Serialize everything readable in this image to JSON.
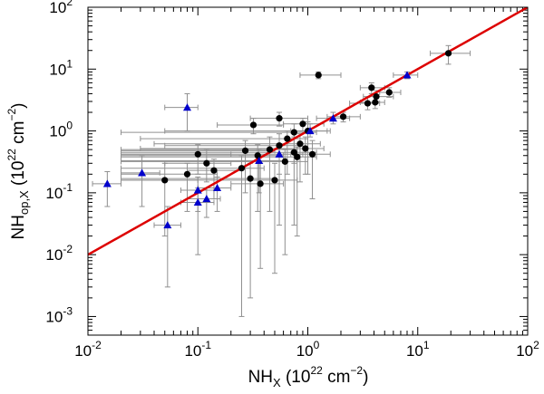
{
  "chart_data": {
    "type": "scatter",
    "title": "",
    "xlabel": {
      "base": "NH",
      "sub": "X",
      "unit_prefix": "  (10",
      "unit_exp": "22",
      "unit_mid": " cm",
      "unit_exp2": "−2",
      "unit_suffix": ")"
    },
    "ylabel": {
      "base": "NH",
      "sub": "op,X",
      "unit_prefix": "  (10",
      "unit_exp": "22",
      "unit_mid": " cm",
      "unit_exp2": "−2",
      "unit_suffix": ")"
    },
    "x_scale": "log",
    "y_scale": "log",
    "xlim": [
      0.01,
      100
    ],
    "ylim": [
      0.0005,
      100
    ],
    "x_ticks": [
      {
        "value": 0.01,
        "base": "10",
        "exp": "-2"
      },
      {
        "value": 0.1,
        "base": "10",
        "exp": "-1"
      },
      {
        "value": 1,
        "base": "10",
        "exp": "0"
      },
      {
        "value": 10,
        "base": "10",
        "exp": "1"
      },
      {
        "value": 100,
        "base": "10",
        "exp": "2"
      }
    ],
    "y_ticks": [
      {
        "value": 0.001,
        "base": "10",
        "exp": "-3"
      },
      {
        "value": 0.01,
        "base": "10",
        "exp": "-2"
      },
      {
        "value": 0.1,
        "base": "10",
        "exp": "-1"
      },
      {
        "value": 1,
        "base": "10",
        "exp": "0"
      },
      {
        "value": 10,
        "base": "10",
        "exp": "1"
      },
      {
        "value": 100,
        "base": "10",
        "exp": "2"
      }
    ],
    "reference_line": {
      "name": "one-to-one",
      "x": [
        0.01,
        100
      ],
      "y": [
        0.01,
        100
      ],
      "color": "#dd0000"
    },
    "series": [
      {
        "name": "circles",
        "marker": "circle",
        "color": "#000000",
        "points": [
          {
            "x": 19.0,
            "y": 18.0,
            "xerr": [
              13.0,
              30.0
            ],
            "yerr": [
              12.0,
              24.0
            ]
          },
          {
            "x": 1.25,
            "y": 8.0,
            "xerr": [
              0.85,
              2.0
            ],
            "yerr": [
              7.0,
              9.0
            ]
          },
          {
            "x": 3.8,
            "y": 5.0,
            "xerr": [
              3.0,
              5.0
            ],
            "yerr": [
              4.0,
              6.0
            ]
          },
          {
            "x": 5.5,
            "y": 4.2,
            "xerr": [
              4.5,
              7.0
            ],
            "yerr": [
              3.5,
              5.0
            ]
          },
          {
            "x": 4.2,
            "y": 3.6,
            "xerr": [
              3.2,
              6.0
            ],
            "yerr": [
              3.0,
              4.5
            ]
          },
          {
            "x": 3.5,
            "y": 2.8,
            "xerr": [
              2.4,
              4.5
            ],
            "yerr": [
              2.2,
              3.5
            ]
          },
          {
            "x": 4.1,
            "y": 2.9,
            "xerr": [
              3.0,
              5.0
            ],
            "yerr": [
              2.3,
              3.6
            ]
          },
          {
            "x": 2.1,
            "y": 1.7,
            "xerr": [
              1.5,
              3.0
            ],
            "yerr": [
              1.4,
              2.0
            ]
          },
          {
            "x": 0.55,
            "y": 1.6,
            "xerr": [
              0.3,
              1.0
            ],
            "yerr": [
              1.2,
              2.0
            ]
          },
          {
            "x": 0.9,
            "y": 1.3,
            "xerr": [
              0.6,
              1.4
            ],
            "yerr": [
              1.0,
              1.6
            ]
          },
          {
            "x": 0.32,
            "y": 1.25,
            "xerr": [
              0.15,
              0.6
            ],
            "yerr": [
              0.9,
              1.6
            ]
          },
          {
            "x": 1.0,
            "y": 1.0,
            "xerr": [
              0.05,
              1.6
            ],
            "yerr": [
              0.2,
              1.4
            ]
          },
          {
            "x": 0.75,
            "y": 0.95,
            "xerr": [
              0.02,
              1.2
            ],
            "yerr": [
              0.3,
              1.3
            ]
          },
          {
            "x": 0.65,
            "y": 0.75,
            "xerr": [
              0.03,
              1.0
            ],
            "yerr": [
              0.2,
              1.0
            ]
          },
          {
            "x": 0.85,
            "y": 0.62,
            "xerr": [
              0.04,
              1.3
            ],
            "yerr": [
              0.15,
              0.9
            ]
          },
          {
            "x": 0.95,
            "y": 0.52,
            "xerr": [
              0.03,
              1.4
            ],
            "yerr": [
              0.2,
              0.8
            ]
          },
          {
            "x": 0.55,
            "y": 0.58,
            "xerr": [
              0.05,
              0.9
            ],
            "yerr": [
              0.03,
              0.9
            ]
          },
          {
            "x": 0.45,
            "y": 0.5,
            "xerr": [
              0.02,
              0.8
            ],
            "yerr": [
              0.05,
              0.8
            ]
          },
          {
            "x": 0.75,
            "y": 0.45,
            "xerr": [
              0.02,
              1.2
            ],
            "yerr": [
              0.03,
              0.8
            ]
          },
          {
            "x": 1.1,
            "y": 0.42,
            "xerr": [
              0.7,
              1.6
            ],
            "yerr": [
              0.08,
              0.7
            ]
          },
          {
            "x": 0.27,
            "y": 0.48,
            "xerr": [
              0.02,
              0.5
            ],
            "yerr": [
              0.1,
              0.7
            ]
          },
          {
            "x": 0.35,
            "y": 0.4,
            "xerr": [
              0.02,
              0.6
            ],
            "yerr": [
              0.05,
              0.6
            ]
          },
          {
            "x": 0.1,
            "y": 0.42,
            "xerr": [
              0.02,
              0.2
            ],
            "yerr": [
              0.2,
              0.6
            ]
          },
          {
            "x": 0.12,
            "y": 0.3,
            "xerr": [
              0.05,
              0.2
            ],
            "yerr": [
              0.15,
              0.5
            ]
          },
          {
            "x": 0.14,
            "y": 0.23,
            "xerr": [
              0.08,
              0.25
            ],
            "yerr": [
              0.08,
              0.35
            ]
          },
          {
            "x": 0.08,
            "y": 0.2,
            "xerr": [
              0.02,
              0.15
            ],
            "yerr": [
              0.05,
              0.3
            ]
          },
          {
            "x": 0.05,
            "y": 0.16,
            "xerr": [
              0.02,
              0.1
            ],
            "yerr": [
              0.02,
              0.3
            ]
          },
          {
            "x": 0.3,
            "y": 0.17,
            "xerr": [
              0.02,
              0.5
            ],
            "yerr": [
              0.002,
              0.3
            ]
          },
          {
            "x": 0.37,
            "y": 0.14,
            "xerr": [
              0.2,
              0.6
            ],
            "yerr": [
              0.006,
              0.3
            ]
          },
          {
            "x": 0.5,
            "y": 0.16,
            "xerr": [
              0.02,
              0.8
            ],
            "yerr": [
              0.005,
              0.3
            ]
          },
          {
            "x": 0.25,
            "y": 0.25,
            "xerr": [
              0.02,
              0.4
            ],
            "yerr": [
              0.001,
              0.4
            ]
          },
          {
            "x": 0.62,
            "y": 0.32,
            "xerr": [
              0.02,
              1.0
            ],
            "yerr": [
              0.01,
              0.5
            ]
          },
          {
            "x": 0.8,
            "y": 0.38,
            "xerr": [
              0.02,
              1.2
            ],
            "yerr": [
              0.02,
              0.55
            ]
          }
        ]
      },
      {
        "name": "triangles",
        "marker": "triangle",
        "color": "#0000cc",
        "points": [
          {
            "x": 8.0,
            "y": 8.0,
            "xerr": [
              6.0,
              10.0
            ],
            "yerr": [
              7.0,
              9.0
            ]
          },
          {
            "x": 1.7,
            "y": 1.6,
            "xerr": [
              1.2,
              2.4
            ],
            "yerr": [
              1.3,
              2.0
            ]
          },
          {
            "x": 1.05,
            "y": 1.0,
            "xerr": [
              0.7,
              1.5
            ],
            "yerr": [
              0.8,
              1.3
            ]
          },
          {
            "x": 0.08,
            "y": 2.4,
            "xerr": [
              0.05,
              0.1
            ],
            "yerr": [
              1.0,
              4.0
            ]
          },
          {
            "x": 0.36,
            "y": 0.33,
            "xerr": [
              0.02,
              0.6
            ],
            "yerr": [
              0.1,
              0.5
            ]
          },
          {
            "x": 0.55,
            "y": 0.42,
            "xerr": [
              0.02,
              0.9
            ],
            "yerr": [
              0.2,
              0.6
            ]
          },
          {
            "x": 0.015,
            "y": 0.14,
            "xerr": [
              0.011,
              0.02
            ],
            "yerr": [
              0.06,
              0.22
            ]
          },
          {
            "x": 0.031,
            "y": 0.21,
            "xerr": [
              0.02,
              0.045
            ],
            "yerr": [
              0.06,
              0.4
            ]
          },
          {
            "x": 0.1,
            "y": 0.11,
            "xerr": [
              0.07,
              0.14
            ],
            "yerr": [
              0.05,
              0.18
            ]
          },
          {
            "x": 0.1,
            "y": 0.07,
            "xerr": [
              0.07,
              0.14
            ],
            "yerr": [
              0.01,
              0.12
            ]
          },
          {
            "x": 0.12,
            "y": 0.08,
            "xerr": [
              0.08,
              0.16
            ],
            "yerr": [
              0.04,
              0.12
            ]
          },
          {
            "x": 0.15,
            "y": 0.12,
            "xerr": [
              0.1,
              0.2
            ],
            "yerr": [
              0.05,
              0.18
            ]
          },
          {
            "x": 0.053,
            "y": 0.03,
            "xerr": [
              0.04,
              0.07
            ],
            "yerr": [
              0.003,
              0.06
            ]
          }
        ]
      }
    ]
  }
}
